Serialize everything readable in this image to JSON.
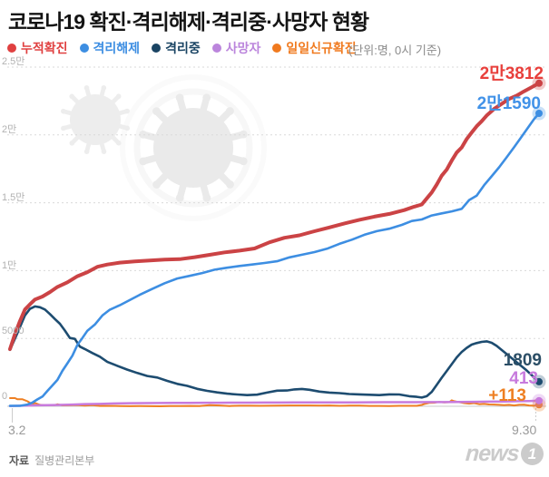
{
  "header": {
    "title": "코로나19 확진·격리해제·격리중·사망자 현황",
    "unit_note": "(단위:명, 0시 기준)"
  },
  "legend": [
    {
      "label": "누적확진",
      "color": "#e04040"
    },
    {
      "label": "격리해제",
      "color": "#3d8ee2"
    },
    {
      "label": "격리중",
      "color": "#1a4463"
    },
    {
      "label": "사망자",
      "color": "#bb85dc"
    },
    {
      "label": "일일신규확진",
      "color": "#f07a1f"
    }
  ],
  "axis": {
    "x_start": "3.2",
    "x_end": "9.30"
  },
  "end_labels": {
    "cumulative": "2만3812",
    "released": "2만1590",
    "active": "1809",
    "deaths": "413",
    "daily": "+113"
  },
  "footer": {
    "source_label": "자료",
    "source_value": "질병관리본부",
    "watermark_text": "news",
    "watermark_digit": "1"
  },
  "chart_data": {
    "type": "line",
    "title": "코로나19 확진·격리해제·격리중·사망자 현황",
    "unit": "명 (0시 기준)",
    "x_axis": {
      "start_label": "3.2",
      "end_label": "9.30",
      "range_days": 212
    },
    "ylim": [
      0,
      25000
    ],
    "grid": "dashed-horizontal",
    "y_ticks": [
      {
        "label": "2.5만",
        "value": 25000
      },
      {
        "label": "2만",
        "value": 20000
      },
      {
        "label": "1.5만",
        "value": 15000
      },
      {
        "label": "1만",
        "value": 10000
      },
      {
        "label": "5000",
        "value": 5000
      },
      {
        "label": "0",
        "value": 0
      }
    ],
    "series": [
      {
        "id": "daily",
        "name": "일일신규확진",
        "color": "#ee7f22",
        "end_value": 113,
        "points": [
          [
            0,
            599
          ],
          [
            2,
            600
          ],
          [
            3,
            516
          ],
          [
            5,
            518
          ],
          [
            7,
            367
          ],
          [
            9,
            131
          ],
          [
            10,
            242
          ],
          [
            12,
            110
          ],
          [
            14,
            76
          ],
          [
            16,
            84
          ],
          [
            18,
            87
          ],
          [
            19,
            147
          ],
          [
            21,
            64
          ],
          [
            24,
            76
          ],
          [
            27,
            91
          ],
          [
            30,
            47
          ],
          [
            33,
            89
          ],
          [
            36,
            27
          ],
          [
            40,
            27
          ],
          [
            44,
            22
          ],
          [
            48,
            8
          ],
          [
            52,
            11
          ],
          [
            56,
            5
          ],
          [
            60,
            3
          ],
          [
            64,
            23
          ],
          [
            68,
            14
          ],
          [
            72,
            26
          ],
          [
            76,
            18
          ],
          [
            80,
            79
          ],
          [
            84,
            58
          ],
          [
            88,
            19
          ],
          [
            92,
            40
          ],
          [
            96,
            38
          ],
          [
            100,
            35
          ],
          [
            104,
            43
          ],
          [
            108,
            48
          ],
          [
            112,
            62
          ],
          [
            116,
            62
          ],
          [
            120,
            63
          ],
          [
            124,
            52
          ],
          [
            128,
            62
          ],
          [
            132,
            33
          ],
          [
            136,
            49
          ],
          [
            140,
            45
          ],
          [
            144,
            25
          ],
          [
            148,
            28
          ],
          [
            152,
            23
          ],
          [
            156,
            36
          ],
          [
            160,
            32
          ],
          [
            163,
            35
          ],
          [
            165,
            103
          ],
          [
            166,
            166
          ],
          [
            168,
            246
          ],
          [
            170,
            264
          ],
          [
            172,
            324
          ],
          [
            174,
            280
          ],
          [
            176,
            299
          ],
          [
            177,
            441
          ],
          [
            178,
            371
          ],
          [
            180,
            299
          ],
          [
            182,
            235
          ],
          [
            184,
            195
          ],
          [
            186,
            235
          ],
          [
            188,
            155
          ],
          [
            190,
            176
          ],
          [
            192,
            136
          ],
          [
            194,
            126
          ],
          [
            196,
            106
          ],
          [
            198,
            82
          ],
          [
            200,
            110
          ],
          [
            202,
            61
          ],
          [
            204,
            110
          ],
          [
            206,
            114
          ],
          [
            208,
            61
          ],
          [
            210,
            38
          ],
          [
            211,
            93
          ],
          [
            212,
            113
          ]
        ]
      },
      {
        "id": "deaths",
        "name": "사망자",
        "color": "#c77add",
        "end_value": 413,
        "points": [
          [
            0,
            22
          ],
          [
            6,
            44
          ],
          [
            12,
            75
          ],
          [
            18,
            94
          ],
          [
            24,
            120
          ],
          [
            30,
            158
          ],
          [
            36,
            177
          ],
          [
            42,
            208
          ],
          [
            48,
            225
          ],
          [
            54,
            236
          ],
          [
            60,
            243
          ],
          [
            66,
            250
          ],
          [
            72,
            256
          ],
          [
            78,
            260
          ],
          [
            84,
            264
          ],
          [
            90,
            266
          ],
          [
            96,
            270
          ],
          [
            102,
            273
          ],
          [
            108,
            276
          ],
          [
            114,
            279
          ],
          [
            120,
            282
          ],
          [
            126,
            284
          ],
          [
            132,
            287
          ],
          [
            138,
            289
          ],
          [
            144,
            294
          ],
          [
            150,
            298
          ],
          [
            156,
            301
          ],
          [
            162,
            304
          ],
          [
            168,
            306
          ],
          [
            174,
            309
          ],
          [
            180,
            315
          ],
          [
            186,
            326
          ],
          [
            192,
            344
          ],
          [
            198,
            355
          ],
          [
            204,
            372
          ],
          [
            208,
            389
          ],
          [
            212,
            413
          ]
        ]
      },
      {
        "id": "active",
        "name": "격리중",
        "color": "#1d4c70",
        "end_value": 1809,
        "points": [
          [
            0,
            4159
          ],
          [
            3,
            5411
          ],
          [
            6,
            6700
          ],
          [
            8,
            7180
          ],
          [
            10,
            7362
          ],
          [
            12,
            7300
          ],
          [
            14,
            7133
          ],
          [
            16,
            6800
          ],
          [
            18,
            6432
          ],
          [
            20,
            6085
          ],
          [
            22,
            5584
          ],
          [
            24,
            5033
          ],
          [
            26,
            4966
          ],
          [
            28,
            4398
          ],
          [
            30,
            4216
          ],
          [
            33,
            3923
          ],
          [
            36,
            3654
          ],
          [
            39,
            3266
          ],
          [
            43,
            2982
          ],
          [
            47,
            2703
          ],
          [
            51,
            2452
          ],
          [
            55,
            2233
          ],
          [
            59,
            2117
          ],
          [
            63,
            1869
          ],
          [
            67,
            1654
          ],
          [
            71,
            1503
          ],
          [
            75,
            1285
          ],
          [
            79,
            1135
          ],
          [
            83,
            1021
          ],
          [
            87,
            927
          ],
          [
            91,
            868
          ],
          [
            95,
            819
          ],
          [
            99,
            855
          ],
          [
            103,
            1007
          ],
          [
            107,
            1153
          ],
          [
            111,
            1160
          ],
          [
            114,
            1244
          ],
          [
            117,
            1277
          ],
          [
            120,
            1216
          ],
          [
            124,
            1083
          ],
          [
            128,
            1010
          ],
          [
            132,
            966
          ],
          [
            136,
            901
          ],
          [
            140,
            874
          ],
          [
            144,
            850
          ],
          [
            148,
            820
          ],
          [
            152,
            878
          ],
          [
            156,
            867
          ],
          [
            160,
            741
          ],
          [
            163,
            695
          ],
          [
            165,
            641
          ],
          [
            167,
            745
          ],
          [
            169,
            1063
          ],
          [
            171,
            1577
          ],
          [
            173,
            2103
          ],
          [
            175,
            2603
          ],
          [
            177,
            3103
          ],
          [
            179,
            3603
          ],
          [
            181,
            4003
          ],
          [
            183,
            4303
          ],
          [
            185,
            4543
          ],
          [
            187,
            4660
          ],
          [
            189,
            4746
          ],
          [
            191,
            4786
          ],
          [
            193,
            4680
          ],
          [
            195,
            4450
          ],
          [
            197,
            4150
          ],
          [
            199,
            3850
          ],
          [
            201,
            3550
          ],
          [
            203,
            3250
          ],
          [
            205,
            2950
          ],
          [
            207,
            2650
          ],
          [
            209,
            2300
          ],
          [
            211,
            1950
          ],
          [
            212,
            1809
          ]
        ]
      },
      {
        "id": "released",
        "name": "격리해제",
        "color": "#3d8ee2",
        "end_value": 21590,
        "points": [
          [
            0,
            31
          ],
          [
            4,
            34
          ],
          [
            7,
            130
          ],
          [
            9,
            271
          ],
          [
            11,
            510
          ],
          [
            13,
            714
          ],
          [
            15,
            1137
          ],
          [
            17,
            1540
          ],
          [
            19,
            1947
          ],
          [
            21,
            2612
          ],
          [
            23,
            3166
          ],
          [
            25,
            3730
          ],
          [
            27,
            4528
          ],
          [
            29,
            5033
          ],
          [
            31,
            5567
          ],
          [
            34,
            6021
          ],
          [
            37,
            6694
          ],
          [
            40,
            7117
          ],
          [
            44,
            7447
          ],
          [
            48,
            7829
          ],
          [
            52,
            8213
          ],
          [
            57,
            8650
          ],
          [
            62,
            9072
          ],
          [
            67,
            9419
          ],
          [
            72,
            9610
          ],
          [
            77,
            9821
          ],
          [
            82,
            10066
          ],
          [
            87,
            10213
          ],
          [
            92,
            10340
          ],
          [
            97,
            10446
          ],
          [
            102,
            10563
          ],
          [
            107,
            10691
          ],
          [
            112,
            10974
          ],
          [
            117,
            11172
          ],
          [
            122,
            11364
          ],
          [
            127,
            11613
          ],
          [
            132,
            11970
          ],
          [
            137,
            12282
          ],
          [
            142,
            12643
          ],
          [
            147,
            12905
          ],
          [
            152,
            13091
          ],
          [
            157,
            13367
          ],
          [
            161,
            13658
          ],
          [
            165,
            13768
          ],
          [
            169,
            14063
          ],
          [
            173,
            14219
          ],
          [
            177,
            14368
          ],
          [
            181,
            14551
          ],
          [
            184,
            15198
          ],
          [
            187,
            15529
          ],
          [
            190,
            16297
          ],
          [
            193,
            16953
          ],
          [
            196,
            17616
          ],
          [
            199,
            18352
          ],
          [
            202,
            19094
          ],
          [
            205,
            19867
          ],
          [
            208,
            20650
          ],
          [
            210,
            21166
          ],
          [
            212,
            21590
          ]
        ]
      },
      {
        "id": "cumulative",
        "name": "누적확진",
        "color": "#cb4345",
        "end_value": 23812,
        "points": [
          [
            0,
            4212
          ],
          [
            2,
            5328
          ],
          [
            4,
            6284
          ],
          [
            6,
            7134
          ],
          [
            8,
            7513
          ],
          [
            10,
            7869
          ],
          [
            13,
            8086
          ],
          [
            16,
            8413
          ],
          [
            19,
            8799
          ],
          [
            23,
            9137
          ],
          [
            27,
            9583
          ],
          [
            31,
            9887
          ],
          [
            35,
            10284
          ],
          [
            39,
            10450
          ],
          [
            44,
            10591
          ],
          [
            50,
            10683
          ],
          [
            56,
            10752
          ],
          [
            62,
            10806
          ],
          [
            68,
            10840
          ],
          [
            74,
            10991
          ],
          [
            80,
            11165
          ],
          [
            86,
            11344
          ],
          [
            92,
            11468
          ],
          [
            98,
            11629
          ],
          [
            104,
            12085
          ],
          [
            110,
            12421
          ],
          [
            116,
            12602
          ],
          [
            122,
            12904
          ],
          [
            128,
            13181
          ],
          [
            134,
            13479
          ],
          [
            140,
            13745
          ],
          [
            146,
            13979
          ],
          [
            152,
            14175
          ],
          [
            158,
            14456
          ],
          [
            162,
            14714
          ],
          [
            165,
            14873
          ],
          [
            167,
            15318
          ],
          [
            169,
            15761
          ],
          [
            171,
            16346
          ],
          [
            173,
            17002
          ],
          [
            175,
            17445
          ],
          [
            177,
            18106
          ],
          [
            179,
            18706
          ],
          [
            181,
            19077
          ],
          [
            183,
            19699
          ],
          [
            185,
            20182
          ],
          [
            187,
            20644
          ],
          [
            189,
            21010
          ],
          [
            191,
            21432
          ],
          [
            194,
            21919
          ],
          [
            197,
            22285
          ],
          [
            200,
            22657
          ],
          [
            203,
            22893
          ],
          [
            206,
            23216
          ],
          [
            209,
            23516
          ],
          [
            212,
            23812
          ]
        ]
      }
    ]
  }
}
